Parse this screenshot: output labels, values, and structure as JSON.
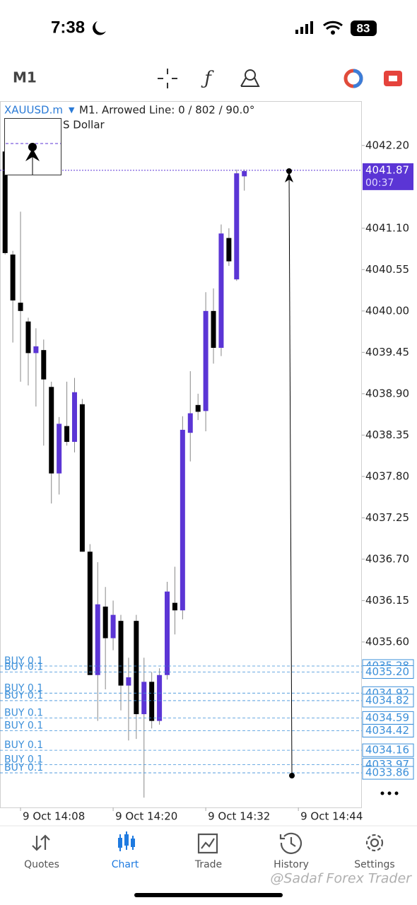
{
  "status_bar": {
    "time": "7:38",
    "battery": "83"
  },
  "toolbar": {
    "timeframe": "M1"
  },
  "chart_data": {
    "type": "candlestick",
    "symbol": "XAUUSD.m",
    "title": "M1. Arrowed Line: 0 / 802 / 90.0°",
    "subtitle": "S Dollar",
    "open": [
      4042.12,
      4040.75,
      4040.11,
      4039.86,
      4039.44,
      4039.48,
      4038.99,
      4037.84,
      4038.47,
      4038.26,
      4038.76,
      4036.8,
      4035.16,
      4036.07,
      4035.65,
      4035.88,
      4035.02,
      4035.88,
      4034.64,
      4035.07,
      4034.55,
      4035.16,
      4036.12,
      4036.02,
      4038.38,
      4038.75,
      4038.67,
      4040.0,
      4039.51,
      4040.97,
      4040.42,
      4041.79
    ],
    "high": [
      4042.26,
      4040.8,
      4041.32,
      4039.91,
      4039.77,
      4039.62,
      4039.06,
      4038.59,
      4039.06,
      4039.11,
      4038.83,
      4036.9,
      4036.66,
      4036.33,
      4036.15,
      4035.96,
      4035.39,
      4035.96,
      4035.39,
      4035.2,
      4035.25,
      4036.4,
      4036.6,
      4038.6,
      4039.2,
      4038.9,
      4040.25,
      4040.3,
      4041.15,
      4041.1,
      4041.88,
      4041.88
    ],
    "low": [
      4040.75,
      4039.58,
      4039.06,
      4039.01,
      4038.73,
      4038.21,
      4037.44,
      4037.56,
      4038.21,
      4038.12,
      4036.8,
      4035.16,
      4034.55,
      4034.97,
      4035.49,
      4034.69,
      4034.29,
      4034.31,
      4033.53,
      4034.45,
      4034.5,
      4035.1,
      4035.7,
      4035.9,
      4038.0,
      4038.55,
      4038.4,
      4039.3,
      4039.4,
      4040.6,
      4040.4,
      4041.6
    ],
    "close": [
      4040.77,
      4040.14,
      4040.0,
      4039.44,
      4039.53,
      4039.09,
      4037.84,
      4038.5,
      4038.26,
      4038.92,
      4036.8,
      4035.16,
      4036.1,
      4035.65,
      4035.96,
      4035.02,
      4035.13,
      4034.64,
      4035.07,
      4034.55,
      4035.16,
      4036.27,
      4036.02,
      4038.42,
      4038.64,
      4038.66,
      4040.0,
      4039.51,
      4041.03,
      4040.66,
      4041.83,
      4041.86
    ],
    "bull_color": "#5b35d5",
    "bear_color": "#000000",
    "ylim": [
      4033.4,
      4042.79
    ],
    "yticks": [
      {
        "value": 4042.2,
        "label": "4042.20"
      },
      {
        "value": 4041.1,
        "label": "4041.10"
      },
      4040.55,
      {
        "value": 4040,
        "label": "4040.00"
      },
      4039.45,
      {
        "value": 4038.9,
        "label": "4038.90"
      },
      4038.35,
      {
        "value": 4037.8,
        "label": "4037.80"
      },
      4037.25,
      {
        "value": 4036.7,
        "label": "4036.70"
      },
      4036.15,
      {
        "value": 4035.6,
        "label": "4035.60"
      }
    ],
    "xlim": [
      -0.66,
      46.23
    ],
    "xticks": [
      {
        "value": 2,
        "label": "9 Oct 14:08"
      },
      {
        "value": 14,
        "label": "9 Oct 14:20"
      },
      {
        "value": 26,
        "label": "9 Oct 14:32"
      },
      {
        "value": 38,
        "label": "9 Oct 14:44"
      }
    ],
    "current_price": {
      "value": 4041.87,
      "timer": "00:37"
    },
    "orders": [
      {
        "label": "BUY 0.1",
        "price": 4035.28
      },
      {
        "label": "BUY 0.1",
        "price": {
          "value": 4035.2,
          "label": "4035.20"
        }
      },
      {
        "label": "BUY 0.1",
        "price": 4034.92
      },
      {
        "label": "BUY 0.1",
        "price": 4034.82
      },
      {
        "label": "BUY 0.1",
        "price": 4034.59
      },
      {
        "label": "BUY 0.1",
        "price": 4034.42
      },
      {
        "label": "BUY 0.1",
        "price": 4034.16
      },
      {
        "label": "BUY 0.1",
        "price": 4033.97
      },
      {
        "label": "BUY 0.1",
        "price": 4033.86
      }
    ],
    "order_color": "#3b8fd9"
  },
  "tabs": [
    {
      "label": "Quotes"
    },
    {
      "label": "Chart",
      "active": true
    },
    {
      "label": "Trade"
    },
    {
      "label": "History"
    },
    {
      "label": "Settings"
    }
  ],
  "watermark": "@Sadaf Forex Trader"
}
